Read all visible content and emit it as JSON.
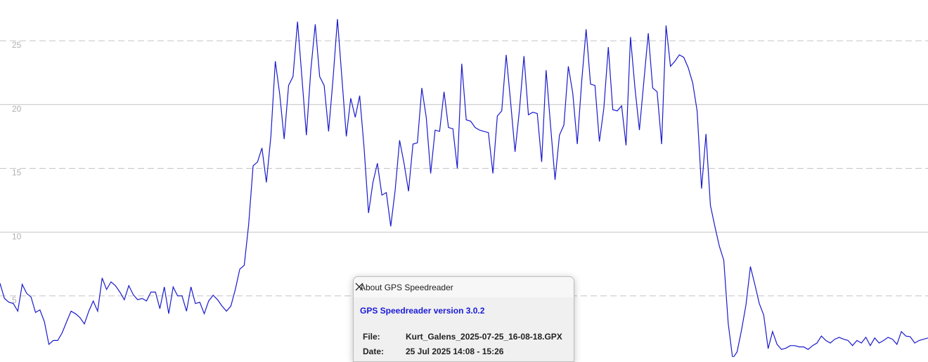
{
  "chart_data": {
    "type": "line",
    "color": "#1a1acc",
    "ylim": [
      0.2,
      28.2
    ],
    "yticks": [
      5,
      10,
      15,
      20,
      25
    ],
    "grid": true,
    "dashed_grid_every_other": true,
    "values": [
      5.98,
      4.8,
      4.5,
      4.4,
      3.8,
      5.9,
      5.2,
      4.9,
      3.7,
      3.9,
      2.96,
      1.2,
      1.5,
      1.5,
      2.1,
      2.96,
      3.8,
      3.6,
      3.3,
      2.8,
      3.8,
      4.6,
      3.8,
      6.4,
      5.5,
      6.1,
      5.8,
      5.3,
      4.7,
      5.8,
      5.1,
      4.7,
      4.8,
      4.6,
      5.3,
      5.3,
      4.0,
      5.7,
      3.6,
      5.7,
      5.0,
      5.0,
      3.8,
      5.7,
      4.4,
      4.5,
      3.6,
      4.6,
      5.05,
      4.7,
      4.2,
      3.8,
      4.2,
      5.5,
      7.1,
      7.4,
      10.6,
      15.2,
      15.5,
      16.6,
      13.9,
      17.5,
      23.4,
      20.8,
      17.3,
      21.5,
      22.2,
      26.5,
      22.1,
      17.6,
      22.7,
      26.3,
      22.2,
      21.5,
      17.9,
      22.0,
      26.7,
      22.1,
      17.5,
      20.5,
      19.0,
      20.7,
      16.6,
      11.5,
      13.9,
      15.4,
      12.9,
      13.1,
      10.45,
      13.3,
      17.2,
      15.4,
      13.2,
      16.9,
      17.0,
      21.3,
      19.0,
      14.6,
      18.0,
      17.9,
      21.0,
      18.2,
      18.1,
      15.0,
      23.2,
      18.8,
      18.7,
      18.2,
      18.0,
      17.9,
      17.8,
      14.6,
      19.1,
      19.5,
      23.9,
      20.2,
      16.3,
      19.6,
      23.8,
      19.2,
      19.4,
      19.3,
      15.5,
      22.7,
      18.3,
      14.1,
      17.6,
      18.4,
      23.0,
      20.9,
      16.9,
      21.8,
      25.9,
      21.6,
      21.5,
      17.1,
      19.7,
      24.5,
      19.6,
      19.5,
      19.9,
      16.8,
      25.3,
      21.3,
      18.0,
      21.8,
      25.6,
      21.3,
      21.0,
      16.9,
      26.2,
      23.0,
      23.4,
      23.9,
      23.7,
      22.9,
      21.7,
      19.5,
      13.4,
      17.7,
      12.1,
      10.45,
      8.9,
      7.8,
      2.85,
      0.1,
      0.6,
      2.3,
      4.3,
      7.3,
      5.9,
      4.4,
      3.5,
      0.86,
      2.2,
      1.2,
      0.8,
      0.9,
      1.1,
      1.1,
      1.0,
      1.0,
      0.8,
      1.1,
      1.3,
      1.85,
      1.5,
      1.3,
      1.6,
      1.75,
      1.6,
      1.5,
      1.1,
      1.5,
      1.3,
      1.75,
      1.1,
      1.7,
      1.3,
      1.5,
      1.75,
      1.6,
      1.2,
      2.2,
      1.85,
      1.8,
      1.3,
      1.5,
      1.6,
      1.7
    ]
  },
  "dialog": {
    "title": "About GPS Speedreader",
    "heading": "GPS Speedreader version 3.0.2",
    "rows": [
      [
        "File:",
        "Kurt_Galens_2025-07-25_16-08-18.GPX"
      ],
      [
        "Date:",
        "25 Jul 2025 14:08 - 15:26"
      ]
    ]
  }
}
